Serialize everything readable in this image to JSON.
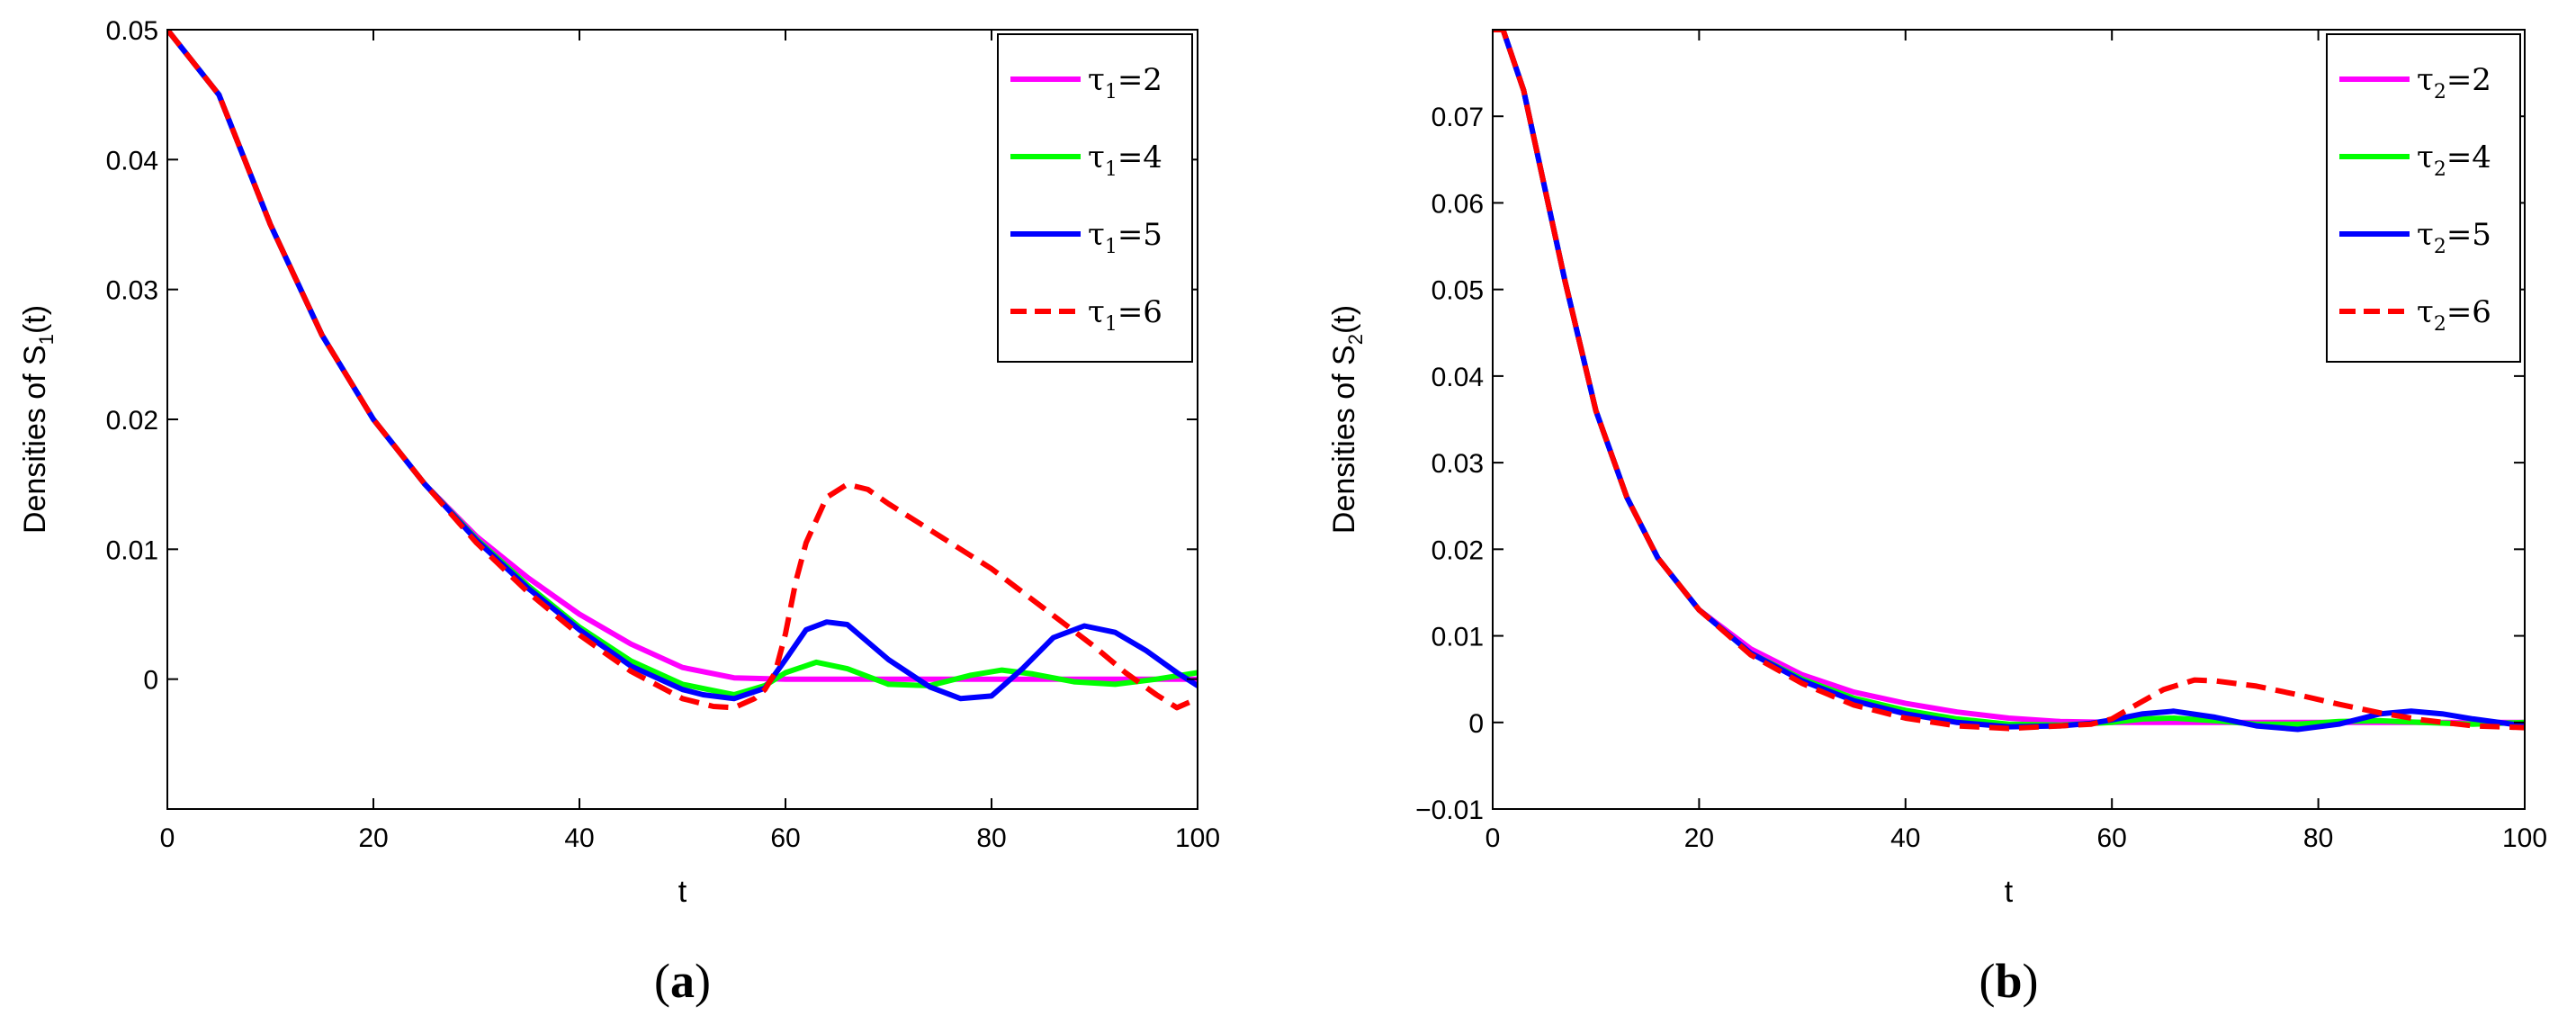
{
  "chart_data": [
    {
      "panel": "a",
      "type": "line",
      "caption_open": "(",
      "caption_letter": "a",
      "caption_close": ")",
      "xlabel": "t",
      "ylabel": "Densities of S",
      "ylabel_sub": "1",
      "ylabel_suffix": "(t)",
      "xlim": [
        0,
        100
      ],
      "ylim": [
        -0.01,
        0.05
      ],
      "xticks": [
        0,
        20,
        40,
        60,
        80,
        100
      ],
      "xtick_labels": [
        "0",
        "20",
        "40",
        "60",
        "80",
        "100"
      ],
      "yticks": [
        0,
        0.01,
        0.02,
        0.03,
        0.04,
        0.05
      ],
      "ytick_labels": [
        "0",
        "0.01",
        "0.02",
        "0.03",
        "0.04",
        "0.05"
      ],
      "legend_position": "top-right",
      "series": [
        {
          "name": "τ1=2",
          "sym": "τ",
          "sub": "1",
          "eq": "=2",
          "color": "#ff00ff",
          "dash": false,
          "x": [
            0,
            5,
            10,
            15,
            20,
            25,
            30,
            35,
            40,
            45,
            50,
            55,
            60,
            65,
            70,
            75,
            80,
            85,
            90,
            95,
            100
          ],
          "y": [
            0.05,
            0.045,
            0.035,
            0.0265,
            0.02,
            0.015,
            0.011,
            0.0078,
            0.005,
            0.0027,
            0.0009,
            0.0001,
            0,
            0,
            0,
            0,
            0,
            0,
            0,
            0,
            0
          ]
        },
        {
          "name": "τ1=4",
          "sym": "τ",
          "sub": "1",
          "eq": "=4",
          "color": "#00ff00",
          "dash": false,
          "x": [
            0,
            5,
            10,
            15,
            20,
            25,
            30,
            35,
            40,
            45,
            50,
            55,
            58,
            60,
            63,
            66,
            70,
            74,
            78,
            81,
            84,
            88,
            92,
            96,
            100
          ],
          "y": [
            0.05,
            0.045,
            0.035,
            0.0265,
            0.02,
            0.015,
            0.0108,
            0.0072,
            0.004,
            0.0014,
            -0.0004,
            -0.0012,
            -0.0005,
            0.0005,
            0.0013,
            0.0008,
            -0.0004,
            -0.0005,
            0.0003,
            0.0007,
            0.0004,
            -0.0002,
            -0.0004,
            0,
            0.0005
          ]
        },
        {
          "name": "τ1=5",
          "sym": "τ",
          "sub": "1",
          "eq": "=5",
          "color": "#0000ff",
          "dash": false,
          "x": [
            0,
            5,
            10,
            15,
            20,
            25,
            30,
            35,
            40,
            45,
            50,
            52,
            55,
            58,
            60,
            62,
            64,
            66,
            70,
            74,
            77,
            80,
            83,
            86,
            89,
            92,
            95,
            98,
            100
          ],
          "y": [
            0.05,
            0.045,
            0.035,
            0.0265,
            0.02,
            0.015,
            0.0107,
            0.007,
            0.0038,
            0.001,
            -0.0008,
            -0.0012,
            -0.0015,
            -0.0007,
            0.0015,
            0.0038,
            0.0044,
            0.0042,
            0.0015,
            -0.0006,
            -0.0015,
            -0.0013,
            0.0008,
            0.0032,
            0.0041,
            0.0036,
            0.0022,
            0.0005,
            -0.0005
          ]
        },
        {
          "name": "τ1=6",
          "sym": "τ",
          "sub": "1",
          "eq": "=6",
          "color": "#ff0000",
          "dash": true,
          "x": [
            0,
            5,
            10,
            15,
            20,
            25,
            30,
            35,
            40,
            45,
            50,
            53,
            55,
            57,
            58,
            59,
            60,
            61,
            62,
            64,
            66,
            68,
            70,
            75,
            80,
            85,
            90,
            93,
            96,
            98,
            100
          ],
          "y": [
            0.05,
            0.045,
            0.035,
            0.0265,
            0.02,
            0.015,
            0.0105,
            0.0067,
            0.0034,
            0.0006,
            -0.0015,
            -0.0021,
            -0.0022,
            -0.0015,
            -0.0008,
            0.0005,
            0.0035,
            0.0075,
            0.0105,
            0.014,
            0.015,
            0.0146,
            0.0135,
            0.011,
            0.0085,
            0.0055,
            0.0025,
            0.0005,
            -0.0012,
            -0.0022,
            -0.0015
          ]
        }
      ]
    },
    {
      "panel": "b",
      "type": "line",
      "caption_open": "(",
      "caption_letter": "b",
      "caption_close": ")",
      "xlabel": "t",
      "ylabel": "Densities of S",
      "ylabel_sub": "2",
      "ylabel_suffix": "(t)",
      "xlim": [
        0,
        100
      ],
      "ylim": [
        -0.01,
        0.08
      ],
      "xticks": [
        0,
        20,
        40,
        60,
        80,
        100
      ],
      "xtick_labels": [
        "0",
        "20",
        "40",
        "60",
        "80",
        "100"
      ],
      "yticks": [
        -0.01,
        0,
        0.01,
        0.02,
        0.03,
        0.04,
        0.05,
        0.06,
        0.07
      ],
      "ytick_labels": [
        "−0.01",
        "0",
        "0.01",
        "0.02",
        "0.03",
        "0.04",
        "0.05",
        "0.06",
        "0.07"
      ],
      "legend_position": "top-right",
      "series": [
        {
          "name": "τ2=2",
          "sym": "τ",
          "sub": "2",
          "eq": "=2",
          "color": "#ff00ff",
          "dash": false,
          "x": [
            0,
            1,
            3,
            5,
            7,
            10,
            13,
            16,
            20,
            25,
            30,
            35,
            40,
            45,
            50,
            55,
            60,
            70,
            80,
            90,
            100
          ],
          "y": [
            0.08,
            0.08,
            0.073,
            0.062,
            0.051,
            0.036,
            0.026,
            0.019,
            0.013,
            0.0085,
            0.0055,
            0.0035,
            0.0022,
            0.0012,
            0.0005,
            0.0001,
            0,
            0,
            0,
            0,
            0
          ]
        },
        {
          "name": "τ2=4",
          "sym": "τ",
          "sub": "2",
          "eq": "=4",
          "color": "#00ff00",
          "dash": false,
          "x": [
            0,
            1,
            3,
            5,
            7,
            10,
            13,
            16,
            20,
            25,
            30,
            35,
            40,
            45,
            50,
            55,
            60,
            63,
            66,
            70,
            74,
            78,
            82,
            86,
            90,
            95,
            100
          ],
          "y": [
            0.08,
            0.08,
            0.073,
            0.062,
            0.051,
            0.036,
            0.026,
            0.019,
            0.013,
            0.008,
            0.005,
            0.0028,
            0.0014,
            0.0004,
            -0.0002,
            -0.0003,
            0,
            0.0004,
            0.0005,
            0.0002,
            -0.0002,
            -0.0002,
            0.0001,
            0.0002,
            0,
            -0.0002,
            0
          ]
        },
        {
          "name": "τ2=5",
          "sym": "τ",
          "sub": "2",
          "eq": "=5",
          "color": "#0000ff",
          "dash": false,
          "x": [
            0,
            1,
            3,
            5,
            7,
            10,
            13,
            16,
            20,
            25,
            30,
            35,
            40,
            45,
            50,
            55,
            58,
            60,
            63,
            66,
            70,
            74,
            78,
            82,
            86,
            89,
            92,
            95,
            100
          ],
          "y": [
            0.08,
            0.08,
            0.073,
            0.062,
            0.051,
            0.036,
            0.026,
            0.019,
            0.013,
            0.008,
            0.0048,
            0.0025,
            0.001,
            0,
            -0.0005,
            -0.0004,
            -0.0001,
            0.0003,
            0.001,
            0.0013,
            0.0006,
            -0.0004,
            -0.0008,
            -0.0002,
            0.001,
            0.0013,
            0.001,
            0.0004,
            -0.0004
          ]
        },
        {
          "name": "τ2=6",
          "sym": "τ",
          "sub": "2",
          "eq": "=6",
          "color": "#ff0000",
          "dash": true,
          "x": [
            0,
            1,
            3,
            5,
            7,
            10,
            13,
            16,
            20,
            25,
            30,
            35,
            40,
            45,
            50,
            55,
            58,
            60,
            62,
            65,
            68,
            70,
            74,
            78,
            82,
            86,
            90,
            95,
            100
          ],
          "y": [
            0.08,
            0.08,
            0.073,
            0.062,
            0.051,
            0.036,
            0.026,
            0.019,
            0.013,
            0.0078,
            0.0045,
            0.002,
            0.0005,
            -0.0004,
            -0.0007,
            -0.0004,
            -0.0002,
            0.0004,
            0.0018,
            0.0038,
            0.0049,
            0.0048,
            0.0042,
            0.0032,
            0.0021,
            0.0011,
            0.0003,
            -0.0004,
            -0.0006
          ]
        }
      ]
    }
  ]
}
